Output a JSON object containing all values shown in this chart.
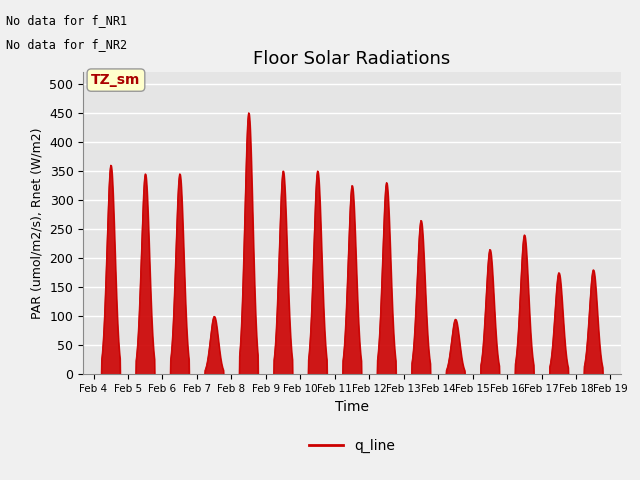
{
  "title": "Floor Solar Radiations",
  "xlabel": "Time",
  "ylabel": "PAR (umol/m2/s), Rnet (W/m2)",
  "ylim": [
    0,
    520
  ],
  "yticks": [
    0,
    50,
    100,
    150,
    200,
    250,
    300,
    350,
    400,
    450,
    500
  ],
  "text_no_data_1": "No data for f_NR1",
  "text_no_data_2": "No data for f_NR2",
  "tz_sm_label": "TZ_sm",
  "legend_label": "q_line",
  "line_color": "#cc0000",
  "fill_color": "#cc0000",
  "bg_color": "#e5e5e5",
  "fig_color": "#f0f0f0",
  "tz_sm_bg": "#ffffcc",
  "tz_sm_text_color": "#aa0000",
  "x_tick_labels": [
    "Feb 4",
    "Feb 5",
    "Feb 6",
    "Feb 7",
    "Feb 8",
    "Feb 9",
    "Feb 10",
    "Feb 11",
    "Feb 12",
    "Feb 13",
    "Feb 14",
    "Feb 15",
    "Feb 16",
    "Feb 17",
    "Feb 18",
    "Feb 19"
  ],
  "daily_peaks": [
    360,
    345,
    345,
    100,
    450,
    350,
    350,
    325,
    330,
    265,
    95,
    215,
    240,
    175,
    180,
    0
  ],
  "n_days": 16
}
